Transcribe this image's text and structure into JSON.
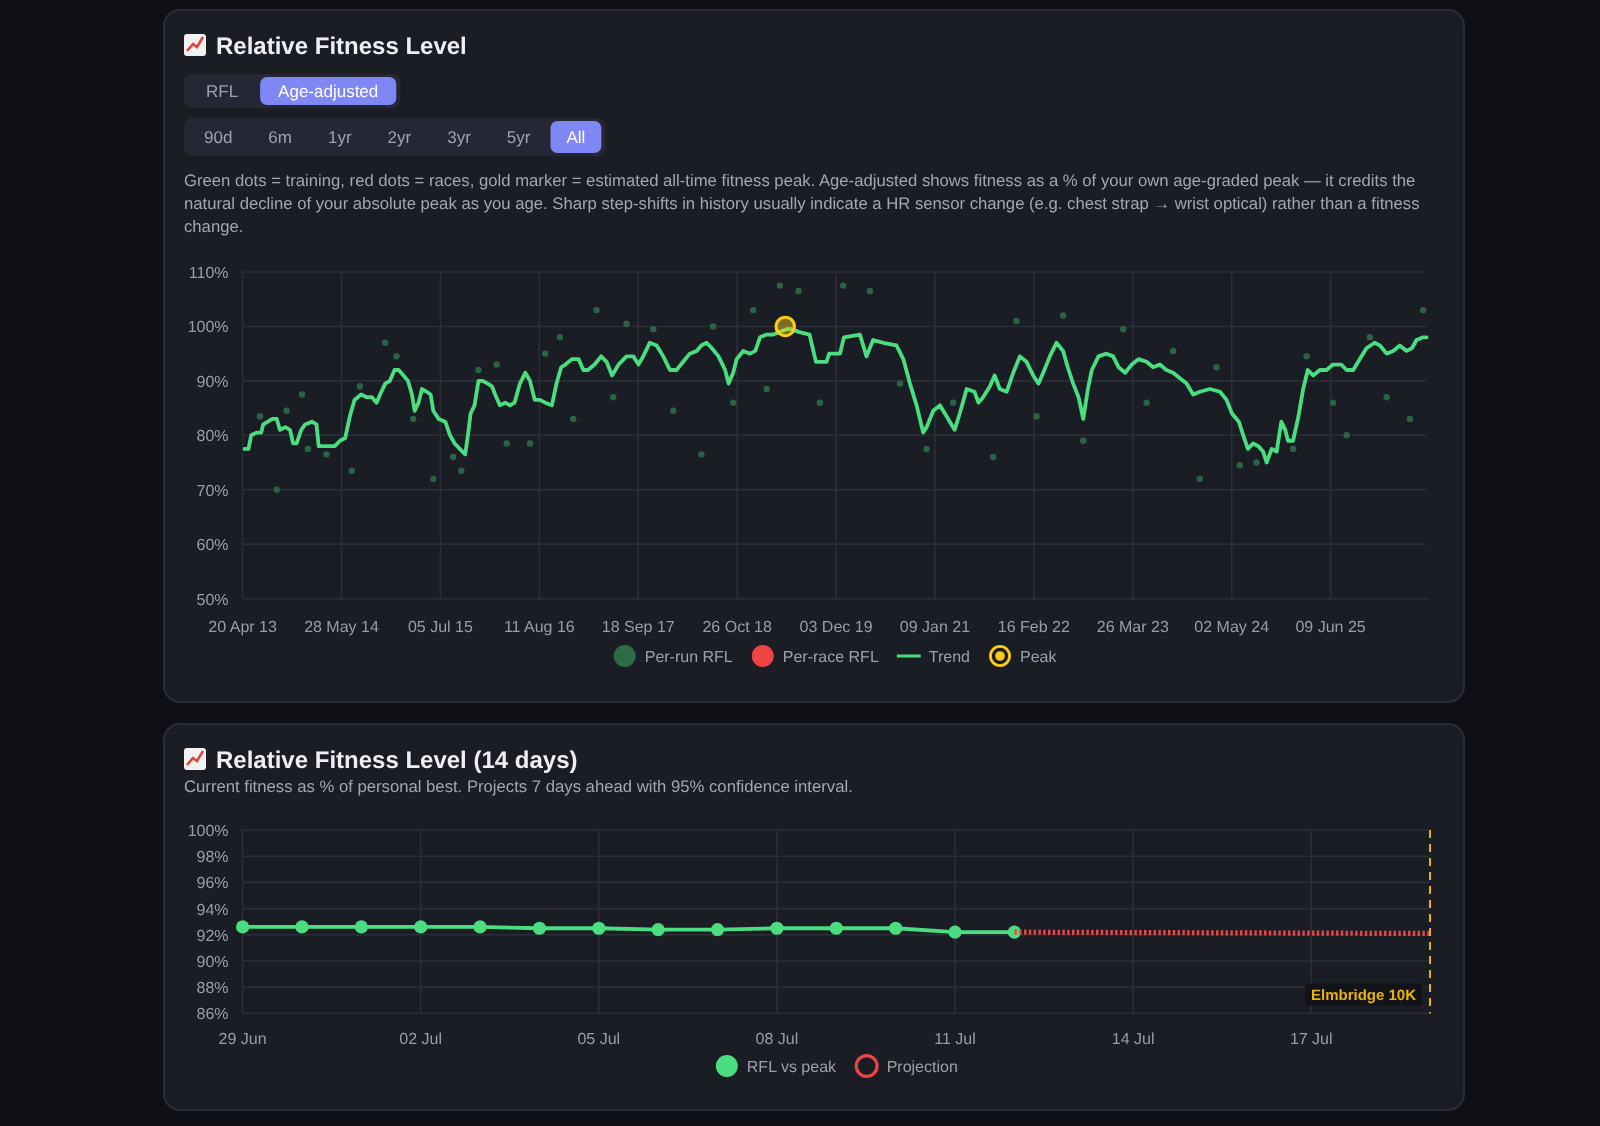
{
  "chart_data": [
    {
      "type": "line",
      "title": "Relative Fitness Level",
      "subtitle": "Green dots = training, red dots = races, gold marker = estimated all-time fitness peak. Age-adjusted shows fitness as a % of your own age-graded peak — it credits the natural decline of your absolute peak as you age. Sharp step-shifts in history usually indicate a HR sensor change (e.g. chest strap → wrist optical) rather than a fitness change.",
      "annotations": [
        "RFL",
        "Age-adjusted",
        "90d",
        "6m",
        "1yr",
        "2yr",
        "3yr",
        "5yr",
        "All"
      ],
      "xlim": [
        "2013-04-20",
        "2026-07-05"
      ],
      "xticks": [
        {
          "value": "2013-04-20",
          "label": "20 Apr 13"
        },
        {
          "value": "2014-05-28",
          "label": "28 May 14"
        },
        {
          "value": "2015-07-05",
          "label": "05 Jul 15"
        },
        {
          "value": "2016-08-11",
          "label": "11 Aug 16"
        },
        {
          "value": "2017-09-18",
          "label": "18 Sep 17"
        },
        {
          "value": "2018-10-26",
          "label": "26 Oct 18"
        },
        {
          "value": "2019-12-03",
          "label": "03 Dec 19"
        },
        {
          "value": "2021-01-09",
          "label": "09 Jan 21"
        },
        {
          "value": "2022-02-16",
          "label": "16 Feb 22"
        },
        {
          "value": "2023-03-26",
          "label": "26 Mar 23"
        },
        {
          "value": "2024-05-02",
          "label": "02 May 24"
        },
        {
          "value": "2025-06-09",
          "label": "09 Jun 25"
        }
      ],
      "ylim": [
        50,
        110
      ],
      "yticks": [
        {
          "value": 50,
          "label": "50%"
        },
        {
          "value": 60,
          "label": "60%"
        },
        {
          "value": 70,
          "label": "70%"
        },
        {
          "value": 80,
          "label": "80%"
        },
        {
          "value": 90,
          "label": "90%"
        },
        {
          "value": 100,
          "label": "100%"
        },
        {
          "value": 110,
          "label": "110%"
        }
      ],
      "grid": true,
      "legend": "bottom",
      "series": [
        {
          "name": "Per-run RFL",
          "type": "scatter",
          "color": "#2e6b47",
          "x": [
            "2013-06-30",
            "2013-09-06",
            "2013-10-16",
            "2013-12-18",
            "2014-01-11",
            "2014-03-28",
            "2014-07-09",
            "2014-08-11",
            "2014-11-22",
            "2015-01-07",
            "2015-03-16",
            "2015-06-06",
            "2015-08-26",
            "2015-09-28",
            "2015-12-07",
            "2016-02-19",
            "2016-03-31",
            "2016-07-04",
            "2016-09-04",
            "2016-11-03",
            "2016-12-27",
            "2017-04-01",
            "2017-06-08",
            "2017-08-01",
            "2017-11-18",
            "2018-02-08",
            "2018-06-02",
            "2018-07-20",
            "2018-10-10",
            "2018-12-30",
            "2019-02-23",
            "2019-04-18",
            "2019-07-03",
            "2019-09-28",
            "2020-01-01",
            "2020-04-19",
            "2020-08-19",
            "2020-12-06",
            "2021-03-24",
            "2021-09-03",
            "2021-12-07",
            "2022-02-27",
            "2022-06-15",
            "2022-09-05",
            "2023-02-15",
            "2023-05-21",
            "2023-09-06",
            "2023-12-24",
            "2024-03-01",
            "2024-06-04",
            "2024-08-11",
            "2025-01-07",
            "2025-03-03",
            "2025-06-19",
            "2025-08-13",
            "2025-11-16",
            "2026-01-23",
            "2026-04-28",
            "2026-06-21"
          ],
          "values": [
            83.5,
            70,
            84.5,
            87.5,
            77.5,
            76.5,
            73.5,
            89,
            97,
            94.5,
            83,
            72,
            76,
            73.5,
            92,
            93,
            78.5,
            78.5,
            95,
            98,
            83,
            103,
            87,
            100.5,
            99.5,
            84.5,
            76.5,
            100,
            86,
            103,
            88.5,
            107.5,
            106.5,
            86,
            107.5,
            106.5,
            89.5,
            77.5,
            86,
            76,
            101,
            83.5,
            102,
            79,
            99.5,
            86,
            95.5,
            72,
            92.5,
            74.5,
            75,
            77.5,
            94.5,
            86,
            80,
            98,
            87,
            83,
            103
          ]
        },
        {
          "name": "Per-race RFL",
          "type": "scatter",
          "color": "#ef4444"
        },
        {
          "name": "Trend",
          "type": "line",
          "color": "#4ade80",
          "marker": "none",
          "x": [
            "2013-04-28",
            "2013-05-14",
            "2013-05-25",
            "2013-06-16",
            "2013-07-05",
            "2013-07-13",
            "2013-08-01",
            "2013-08-18",
            "2013-09-06",
            "2013-09-19",
            "2013-10-11",
            "2013-10-30",
            "2013-11-12",
            "2013-11-26",
            "2013-12-15",
            "2013-12-31",
            "2014-01-27",
            "2014-02-15",
            "2014-02-24",
            "2014-03-23",
            "2014-04-30",
            "2014-05-22",
            "2014-06-12",
            "2014-07-01",
            "2014-07-20",
            "2014-08-16",
            "2014-09-07",
            "2014-09-29",
            "2014-10-18",
            "2014-11-01",
            "2014-11-22",
            "2014-12-11",
            "2014-12-30",
            "2015-01-16",
            "2015-01-26",
            "2015-02-23",
            "2015-03-11",
            "2015-03-22",
            "2015-04-07",
            "2015-04-21",
            "2015-05-10",
            "2015-05-26",
            "2015-06-06",
            "2015-06-28",
            "2015-07-25",
            "2015-08-13",
            "2015-09-01",
            "2015-09-22",
            "2015-10-14",
            "2015-10-25",
            "2015-11-05",
            "2015-11-21",
            "2015-12-07",
            "2015-12-24",
            "2016-01-14",
            "2016-01-31",
            "2016-02-13",
            "2016-03-03",
            "2016-03-25",
            "2016-04-13",
            "2016-05-02",
            "2016-05-24",
            "2016-06-15",
            "2016-07-04",
            "2016-07-23",
            "2016-08-13",
            "2016-09-04",
            "2016-10-01",
            "2016-10-20",
            "2016-11-08",
            "2016-11-25",
            "2016-12-22",
            "2017-01-18",
            "2017-02-06",
            "2017-02-25",
            "2017-03-24",
            "2017-04-20",
            "2017-05-12",
            "2017-06-03",
            "2017-06-30",
            "2017-08-01",
            "2017-08-29",
            "2017-09-19",
            "2017-10-08",
            "2017-11-04",
            "2017-12-02",
            "2017-12-29",
            "2018-01-25",
            "2018-02-21",
            "2018-03-20",
            "2018-04-16",
            "2018-05-14",
            "2018-06-02",
            "2018-06-23",
            "2018-07-15",
            "2018-08-11",
            "2018-09-07",
            "2018-09-21",
            "2018-10-10",
            "2018-10-24",
            "2018-11-20",
            "2018-12-17",
            "2019-01-08",
            "2019-01-27",
            "2019-02-23",
            "2019-03-22",
            "2019-04-18",
            "2019-05-15",
            "2019-06-06",
            "2019-07-03",
            "2019-08-17",
            "2019-09-12",
            "2019-10-25",
            "2019-11-05",
            "2019-12-19",
            "2020-01-04",
            "2020-03-09",
            "2020-04-05",
            "2020-05-02",
            "2020-06-12",
            "2020-08-05",
            "2020-09-02",
            "2020-09-29",
            "2020-10-26",
            "2020-11-22",
            "2020-12-06",
            "2021-01-02",
            "2021-01-29",
            "2021-02-25",
            "2021-03-30",
            "2021-04-20",
            "2021-05-18",
            "2021-06-19",
            "2021-07-05",
            "2021-07-24",
            "2021-08-21",
            "2021-09-09",
            "2021-09-30",
            "2021-10-28",
            "2021-11-24",
            "2021-12-21",
            "2022-01-17",
            "2022-02-13",
            "2022-03-07",
            "2022-03-26",
            "2022-04-22",
            "2022-05-19",
            "2022-06-15",
            "2022-07-04",
            "2022-07-26",
            "2022-08-17",
            "2022-09-05",
            "2022-09-24",
            "2022-10-10",
            "2022-11-06",
            "2022-12-09",
            "2023-01-05",
            "2023-01-27",
            "2023-02-23",
            "2023-03-22",
            "2023-04-18",
            "2023-05-21",
            "2023-06-17",
            "2023-07-14",
            "2023-08-10",
            "2023-09-06",
            "2023-10-04",
            "2023-10-31",
            "2023-11-27",
            "2023-12-24",
            "2024-02-03",
            "2024-03-15",
            "2024-04-11",
            "2024-05-03",
            "2024-05-31",
            "2024-06-18",
            "2024-07-07",
            "2024-07-28",
            "2024-08-19",
            "2024-09-07",
            "2024-09-21",
            "2024-10-12",
            "2024-11-01",
            "2024-11-20",
            "2024-12-06",
            "2024-12-17",
            "2025-01-07",
            "2025-01-29",
            "2025-02-17",
            "2025-03-08",
            "2025-03-30",
            "2025-04-26",
            "2025-05-23",
            "2025-06-19",
            "2025-07-22",
            "2025-08-13",
            "2025-09-09",
            "2025-10-06",
            "2025-11-02",
            "2025-12-05",
            "2025-12-27",
            "2026-01-23",
            "2026-02-19",
            "2026-03-18",
            "2026-04-14",
            "2026-05-06",
            "2026-05-25",
            "2026-06-21",
            "2026-07-05"
          ],
          "values": [
            77.5,
            77.5,
            80,
            80.5,
            80.5,
            82,
            82.5,
            83,
            83,
            81,
            81.5,
            81,
            78.5,
            78.5,
            81,
            82,
            82.5,
            82,
            78,
            78,
            78,
            79,
            79.5,
            83.5,
            86.5,
            87.5,
            87,
            87,
            86,
            87.5,
            89.5,
            90,
            92,
            92,
            91.5,
            90,
            87.5,
            84.5,
            86,
            88.5,
            88,
            87.5,
            84.5,
            83,
            82.5,
            80,
            78.5,
            77.5,
            76.5,
            80,
            84,
            85.5,
            90,
            90,
            89.5,
            89,
            87.5,
            85.5,
            86,
            85.5,
            86,
            89.5,
            91.5,
            90,
            86.5,
            86.5,
            86,
            85.5,
            89.5,
            92.5,
            93,
            94,
            94,
            92,
            92,
            93,
            94.5,
            93.5,
            91,
            93,
            94.5,
            94.5,
            93,
            94.5,
            97,
            96.5,
            94.5,
            92,
            92,
            93.5,
            95,
            95.5,
            96.5,
            97,
            96,
            94.5,
            92,
            89.5,
            91.5,
            94,
            95.5,
            95,
            95.5,
            98,
            98.5,
            98.5,
            99,
            99.5,
            99.5,
            99,
            98.5,
            93.5,
            93.5,
            95,
            95,
            98,
            98.5,
            94.5,
            97.5,
            97,
            96.5,
            94,
            89.5,
            85.5,
            80.5,
            81.5,
            84.5,
            85.5,
            83.5,
            81,
            84,
            88.5,
            88,
            86,
            87,
            89,
            91,
            88.5,
            88,
            91.5,
            94.5,
            93.5,
            91,
            89.5,
            91.5,
            94.5,
            97,
            95.5,
            92.5,
            89.5,
            87,
            83,
            88.5,
            92,
            94.5,
            95,
            94.5,
            92.5,
            91.5,
            93,
            94,
            93.5,
            92.5,
            93,
            92,
            91.5,
            90.5,
            89.5,
            87.5,
            88,
            88.5,
            88,
            86.5,
            84,
            82.5,
            80,
            77.5,
            78.5,
            78,
            77,
            75,
            77.5,
            77,
            82.5,
            81,
            79,
            79,
            83.5,
            88.5,
            92,
            91,
            92,
            92,
            93,
            93,
            92,
            92,
            94,
            96,
            97,
            96.5,
            95,
            95.5,
            96.5,
            95.5,
            96,
            97.5,
            98,
            98
          ]
        },
        {
          "name": "Peak",
          "type": "scatter",
          "color": "#facc15",
          "x": [
            "2019-05-10"
          ],
          "values": [
            100
          ]
        }
      ]
    },
    {
      "type": "line",
      "title": "Relative Fitness Level (14 days)",
      "subtitle": "Current fitness as % of personal best. Projects 7 days ahead with 95% confidence interval.",
      "xlim": [
        "--06-29",
        "--07-19"
      ],
      "xticks": [
        {
          "value": "--06-29",
          "label": "29 Jun"
        },
        {
          "value": "--07-02",
          "label": "02 Jul"
        },
        {
          "value": "--07-05",
          "label": "05 Jul"
        },
        {
          "value": "--07-08",
          "label": "08 Jul"
        },
        {
          "value": "--07-11",
          "label": "11 Jul"
        },
        {
          "value": "--07-14",
          "label": "14 Jul"
        },
        {
          "value": "--07-17",
          "label": "17 Jul"
        }
      ],
      "ylim": [
        86,
        100
      ],
      "yticks": [
        {
          "value": 86,
          "label": "86%"
        },
        {
          "value": 88,
          "label": "88%"
        },
        {
          "value": 90,
          "label": "90%"
        },
        {
          "value": 92,
          "label": "92%"
        },
        {
          "value": 94,
          "label": "94%"
        },
        {
          "value": 96,
          "label": "96%"
        },
        {
          "value": 98,
          "label": "98%"
        },
        {
          "value": 100,
          "label": "100%"
        }
      ],
      "grid": true,
      "legend": "bottom",
      "series": [
        {
          "name": "RFL vs peak",
          "color": "#4ade80",
          "marker": "circle",
          "x": [
            "--06-29",
            "--06-30",
            "--07-01",
            "--07-02",
            "--07-03",
            "--07-04",
            "--07-05",
            "--07-06",
            "--07-07",
            "--07-08",
            "--07-09",
            "--07-10",
            "--07-11",
            "--07-12"
          ],
          "values": [
            92.6,
            92.6,
            92.6,
            92.6,
            92.6,
            92.5,
            92.5,
            92.4,
            92.4,
            92.5,
            92.5,
            92.5,
            92.2,
            92.2
          ]
        },
        {
          "name": "Projection",
          "color": "#ef4444",
          "marker": "none",
          "line_style": "dotted",
          "x": [
            "--07-12",
            "--07-19"
          ],
          "values": [
            92.2,
            92.1
          ]
        }
      ],
      "ref_lines": [
        {
          "axis": "x",
          "value": "--07-19",
          "label": "Elmbridge 10K",
          "color": "#eab308",
          "line_style": "dashed"
        }
      ]
    }
  ]
}
